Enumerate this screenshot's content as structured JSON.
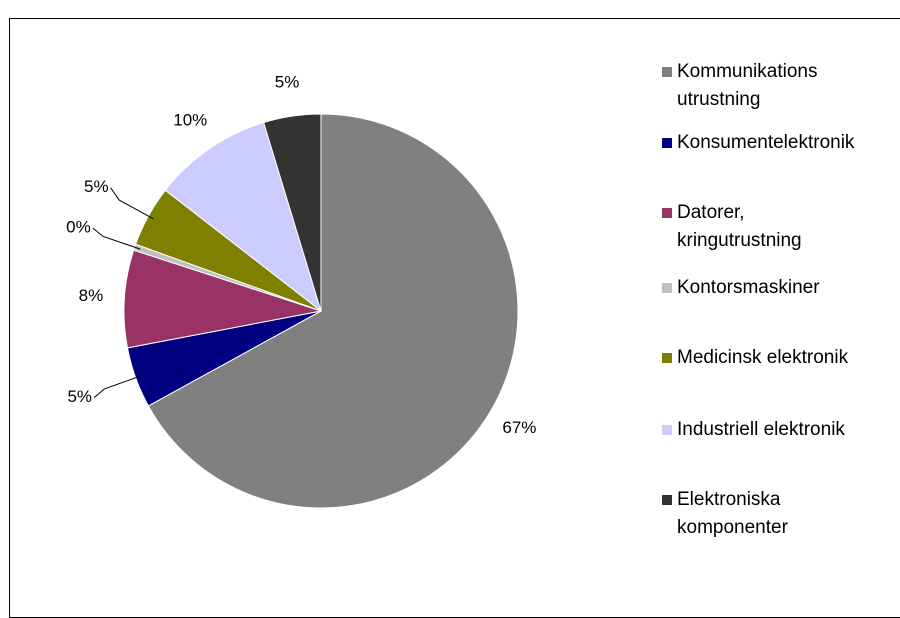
{
  "chart_data": {
    "type": "pie",
    "categories": [
      "Kommunikations utrustning",
      "Konsumentelektronik",
      "Datorer, kringutrustning",
      "Kontorsmaskiner",
      "Medicinsk elektronik",
      "Industriell elektronik",
      "Elektroniska komponenter"
    ],
    "values": [
      67,
      5,
      8,
      0.5,
      5,
      9.8,
      4.7
    ],
    "value_labels": [
      "67%",
      "5%",
      "8%",
      "0%",
      "5%",
      "10%",
      "5%"
    ],
    "colors": [
      "#808080",
      "#000080",
      "#993366",
      "#c0c0c0",
      "#808000",
      "#ccccff",
      "#333333"
    ],
    "legend": "right"
  }
}
